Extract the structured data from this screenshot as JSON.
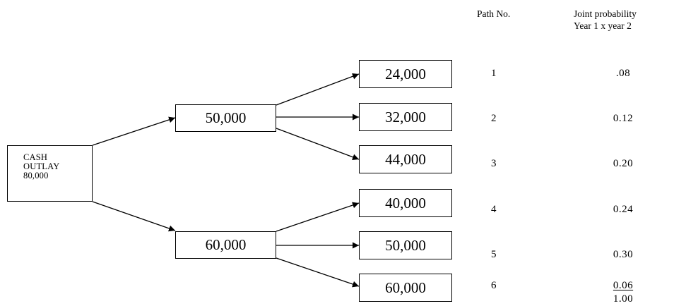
{
  "diagram": {
    "root": {
      "line1": "CASH",
      "line2": "OUTLAY",
      "line3": "80,000"
    },
    "year1": [
      {
        "value": "50,000"
      },
      {
        "value": "60,000"
      }
    ],
    "year2": [
      {
        "value": "24,000"
      },
      {
        "value": "32,000"
      },
      {
        "value": "44,000"
      },
      {
        "value": "40,000"
      },
      {
        "value": "50,000"
      },
      {
        "value": "60,000"
      }
    ]
  },
  "table": {
    "path_header": "Path No.",
    "prob_header_line1": "Joint probability",
    "prob_header_line2": "Year 1 x year 2",
    "rows": [
      {
        "path": "1",
        "prob": ".08"
      },
      {
        "path": "2",
        "prob": "0.12"
      },
      {
        "path": "3",
        "prob": "0.20"
      },
      {
        "path": "4",
        "prob": "0.24"
      },
      {
        "path": "5",
        "prob": "0.30"
      },
      {
        "path": "6",
        "prob": "0.06"
      }
    ],
    "total": "1.00"
  }
}
